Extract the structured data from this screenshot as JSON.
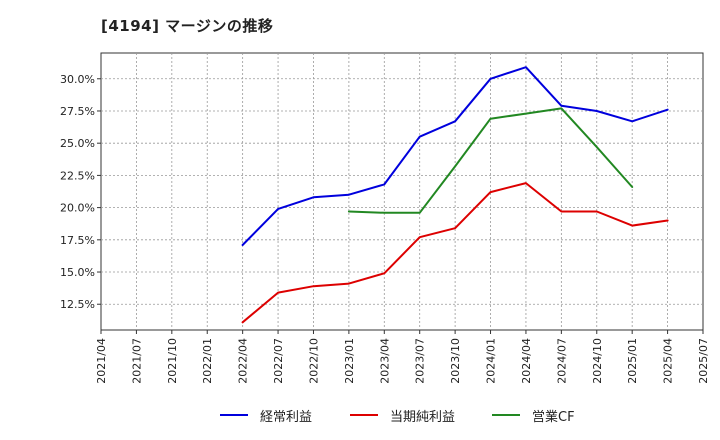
{
  "chart_data": {
    "type": "line",
    "title": "[4194]  マージンの推移",
    "xlabel": "",
    "ylabel": "",
    "x_ticks": [
      "2021/04",
      "2021/07",
      "2021/10",
      "2022/01",
      "2022/04",
      "2022/07",
      "2022/10",
      "2023/01",
      "2023/04",
      "2023/07",
      "2023/10",
      "2024/01",
      "2024/04",
      "2024/07",
      "2024/10",
      "2025/01",
      "2025/04",
      "2025/07"
    ],
    "y_ticks": [
      "12.5%",
      "15.0%",
      "17.5%",
      "20.0%",
      "22.5%",
      "25.0%",
      "27.5%",
      "30.0%"
    ],
    "ylim": [
      10.5,
      32.0
    ],
    "grid": true,
    "legend_position": "bottom",
    "series": [
      {
        "name": "経常利益",
        "color": "#0000dd",
        "points": [
          [
            "2022/04",
            17.1
          ],
          [
            "2022/07",
            19.9
          ],
          [
            "2022/10",
            20.8
          ],
          [
            "2023/01",
            21.0
          ],
          [
            "2023/04",
            21.8
          ],
          [
            "2023/07",
            25.5
          ],
          [
            "2023/10",
            26.7
          ],
          [
            "2024/01",
            30.0
          ],
          [
            "2024/04",
            30.9
          ],
          [
            "2024/07",
            27.9
          ],
          [
            "2024/10",
            27.5
          ],
          [
            "2025/01",
            26.7
          ],
          [
            "2025/04",
            27.6
          ]
        ]
      },
      {
        "name": "当期純利益",
        "color": "#dd0000",
        "points": [
          [
            "2022/04",
            11.1
          ],
          [
            "2022/07",
            13.4
          ],
          [
            "2022/10",
            13.9
          ],
          [
            "2023/01",
            14.1
          ],
          [
            "2023/04",
            14.9
          ],
          [
            "2023/07",
            17.7
          ],
          [
            "2023/10",
            18.4
          ],
          [
            "2024/01",
            21.2
          ],
          [
            "2024/04",
            21.9
          ],
          [
            "2024/07",
            19.7
          ],
          [
            "2024/10",
            19.7
          ],
          [
            "2025/01",
            18.6
          ],
          [
            "2025/04",
            19.0
          ]
        ]
      },
      {
        "name": "営業CF",
        "color": "#228822",
        "points": [
          [
            "2023/01",
            19.7
          ],
          [
            "2023/04",
            19.6
          ],
          [
            "2023/07",
            19.6
          ],
          [
            "2023/10",
            23.2
          ],
          [
            "2024/01",
            26.9
          ],
          [
            "2024/04",
            27.3
          ],
          [
            "2024/07",
            27.7
          ],
          [
            "2024/10",
            24.7
          ],
          [
            "2025/01",
            21.6
          ]
        ]
      }
    ]
  }
}
